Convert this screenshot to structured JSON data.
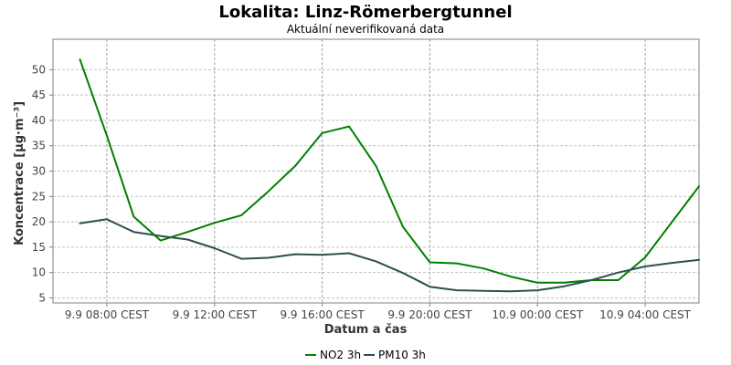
{
  "chart_data": {
    "type": "line",
    "title": "Lokalita: Linz-Römerbergtunnel",
    "subtitle": "Aktuální neverifikovaná data",
    "xlabel": "Datum a čas",
    "ylabel": "Koncentrace [µg·m⁻³]",
    "ylim": [
      4,
      56
    ],
    "xlim_hours": [
      6.0,
      30.0
    ],
    "y_ticks": [
      5,
      10,
      15,
      20,
      25,
      30,
      35,
      40,
      45,
      50
    ],
    "x_ticks": [
      {
        "label": "9.9 08:00 CEST",
        "hour": 8
      },
      {
        "label": "9.9 12:00 CEST",
        "hour": 12
      },
      {
        "label": "9.9 16:00 CEST",
        "hour": 16
      },
      {
        "label": "9.9 20:00 CEST",
        "hour": 20
      },
      {
        "label": "10.9 00:00 CEST",
        "hour": 24
      },
      {
        "label": "10.9 04:00 CEST",
        "hour": 28
      }
    ],
    "grid": true,
    "legend_position": "bottom-center",
    "series": [
      {
        "name": "NO2 3h",
        "color": "#008000",
        "points": [
          [
            7,
            52
          ],
          [
            8,
            37
          ],
          [
            9,
            21
          ],
          [
            10,
            16.3
          ],
          [
            11,
            18
          ],
          [
            12,
            19.8
          ],
          [
            13,
            21.3
          ],
          [
            14,
            26
          ],
          [
            15,
            31
          ],
          [
            16,
            37.5
          ],
          [
            17,
            38.8
          ],
          [
            18,
            31
          ],
          [
            19,
            19
          ],
          [
            20,
            12
          ],
          [
            21,
            11.8
          ],
          [
            22,
            10.8
          ],
          [
            23,
            9.2
          ],
          [
            24,
            8
          ],
          [
            25,
            8
          ],
          [
            26,
            8.5
          ],
          [
            27,
            8.5
          ],
          [
            28,
            13
          ],
          [
            29,
            20
          ],
          [
            30,
            27
          ]
        ]
      },
      {
        "name": "PM10 3h",
        "color": "#2f4f4f",
        "points": [
          [
            7,
            19.7
          ],
          [
            8,
            20.5
          ],
          [
            9,
            18
          ],
          [
            10,
            17.2
          ],
          [
            11,
            16.5
          ],
          [
            12,
            14.8
          ],
          [
            13,
            12.7
          ],
          [
            14,
            12.9
          ],
          [
            15,
            13.6
          ],
          [
            16,
            13.5
          ],
          [
            17,
            13.8
          ],
          [
            18,
            12.2
          ],
          [
            19,
            9.9
          ],
          [
            20,
            7.2
          ],
          [
            21,
            6.5
          ],
          [
            22,
            6.4
          ],
          [
            23,
            6.3
          ],
          [
            24,
            6.5
          ],
          [
            25,
            7.3
          ],
          [
            26,
            8.5
          ],
          [
            27,
            10
          ],
          [
            28,
            11.2
          ],
          [
            29,
            11.9
          ],
          [
            30,
            12.5
          ]
        ]
      }
    ],
    "colors": {
      "grid": "#c0c0c0",
      "frame": "#808080",
      "tick_text": "#444444"
    }
  }
}
